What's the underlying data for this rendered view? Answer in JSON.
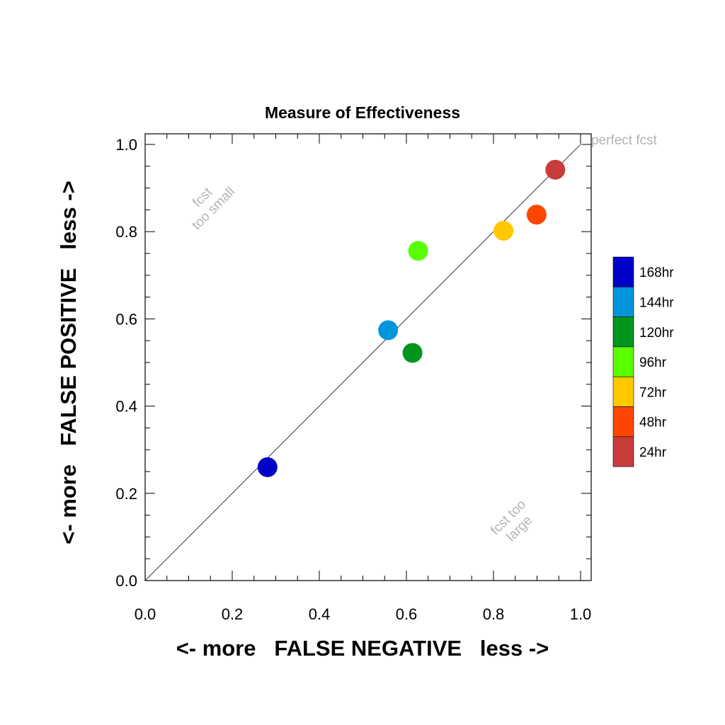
{
  "chart_data": {
    "type": "scatter",
    "title": "Measure of Effectiveness",
    "xlabel": "<- more   FALSE NEGATIVE   less ->",
    "ylabel": "<- more   FALSE POSITIVE   less ->",
    "xlim": [
      0.0,
      1.0
    ],
    "ylim": [
      0.0,
      1.0
    ],
    "xticks": [
      "0.0",
      "0.2",
      "0.4",
      "0.6",
      "0.8",
      "1.0"
    ],
    "yticks": [
      "0.0",
      "0.2",
      "0.4",
      "0.6",
      "0.8",
      "1.0"
    ],
    "grid": false,
    "reference_line": {
      "from": [
        0.0,
        0.0
      ],
      "to": [
        1.0,
        1.0
      ]
    },
    "annotations": {
      "perfect": "perfect fcst",
      "too_small": [
        "fcst",
        "too small"
      ],
      "too_large": [
        "fcst too",
        "large"
      ]
    },
    "legend_position": "right",
    "series": [
      {
        "name": "168hr",
        "color": "#0000c8",
        "x": 0.281,
        "y": 0.26
      },
      {
        "name": "144hr",
        "color": "#0096dc",
        "x": 0.558,
        "y": 0.574
      },
      {
        "name": "120hr",
        "color": "#00961e",
        "x": 0.614,
        "y": 0.522
      },
      {
        "name": "96hr",
        "color": "#5aff00",
        "x": 0.627,
        "y": 0.756
      },
      {
        "name": "72hr",
        "color": "#ffc800",
        "x": 0.823,
        "y": 0.802
      },
      {
        "name": "48hr",
        "color": "#ff4600",
        "x": 0.899,
        "y": 0.839
      },
      {
        "name": "24hr",
        "color": "#c83c3c",
        "x": 0.942,
        "y": 0.942
      }
    ]
  }
}
